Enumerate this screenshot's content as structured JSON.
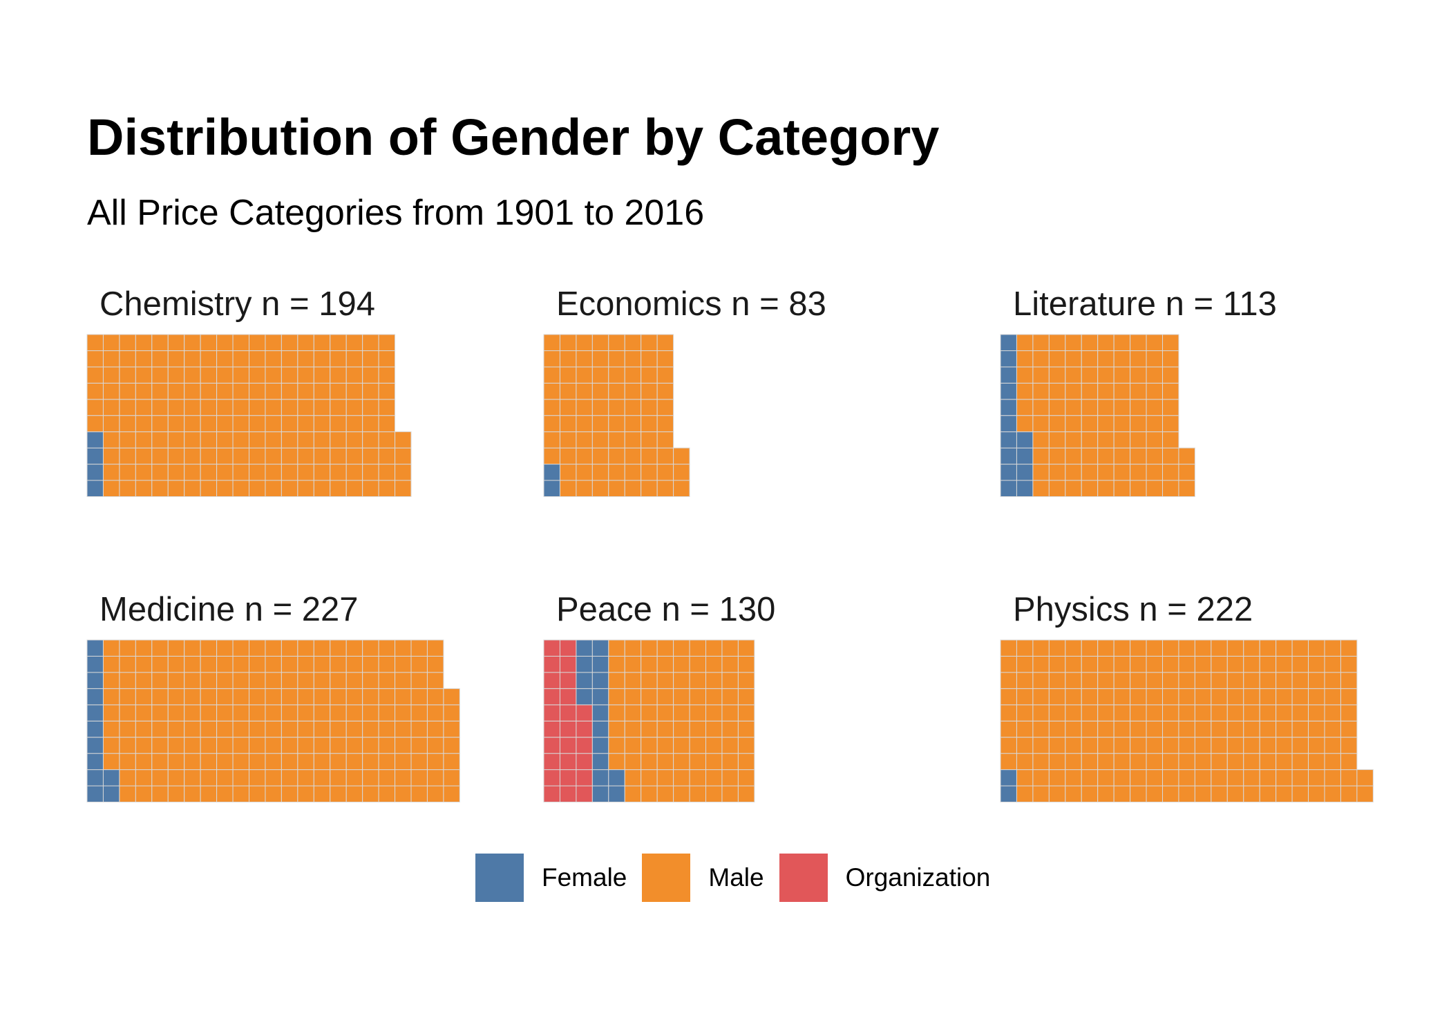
{
  "chart_data": {
    "type": "waffle",
    "title": "Distribution of Gender by Category",
    "subtitle": "All Price Categories from 1901 to 2016",
    "rows_per_column": 10,
    "facets": [
      {
        "label": "Chemistry n = 194",
        "counts": {
          "Organization": 0,
          "Female": 4,
          "Male": 190
        }
      },
      {
        "label": "Economics n = 83",
        "counts": {
          "Organization": 0,
          "Female": 2,
          "Male": 81
        }
      },
      {
        "label": "Literature n = 113",
        "counts": {
          "Organization": 0,
          "Female": 14,
          "Male": 99
        }
      },
      {
        "label": "Medicine n = 227",
        "counts": {
          "Organization": 0,
          "Female": 12,
          "Male": 215
        }
      },
      {
        "label": "Peace n = 130",
        "counts": {
          "Organization": 26,
          "Female": 16,
          "Male": 88
        }
      },
      {
        "label": "Physics n = 222",
        "counts": {
          "Organization": 0,
          "Female": 2,
          "Male": 220
        }
      }
    ],
    "stack_order": [
      "Organization",
      "Female",
      "Male"
    ],
    "legend": {
      "position": "bottom",
      "items": [
        {
          "name": "Female",
          "color": "#4e79a7"
        },
        {
          "name": "Male",
          "color": "#f28e2b"
        },
        {
          "name": "Organization",
          "color": "#e15759"
        }
      ]
    }
  }
}
